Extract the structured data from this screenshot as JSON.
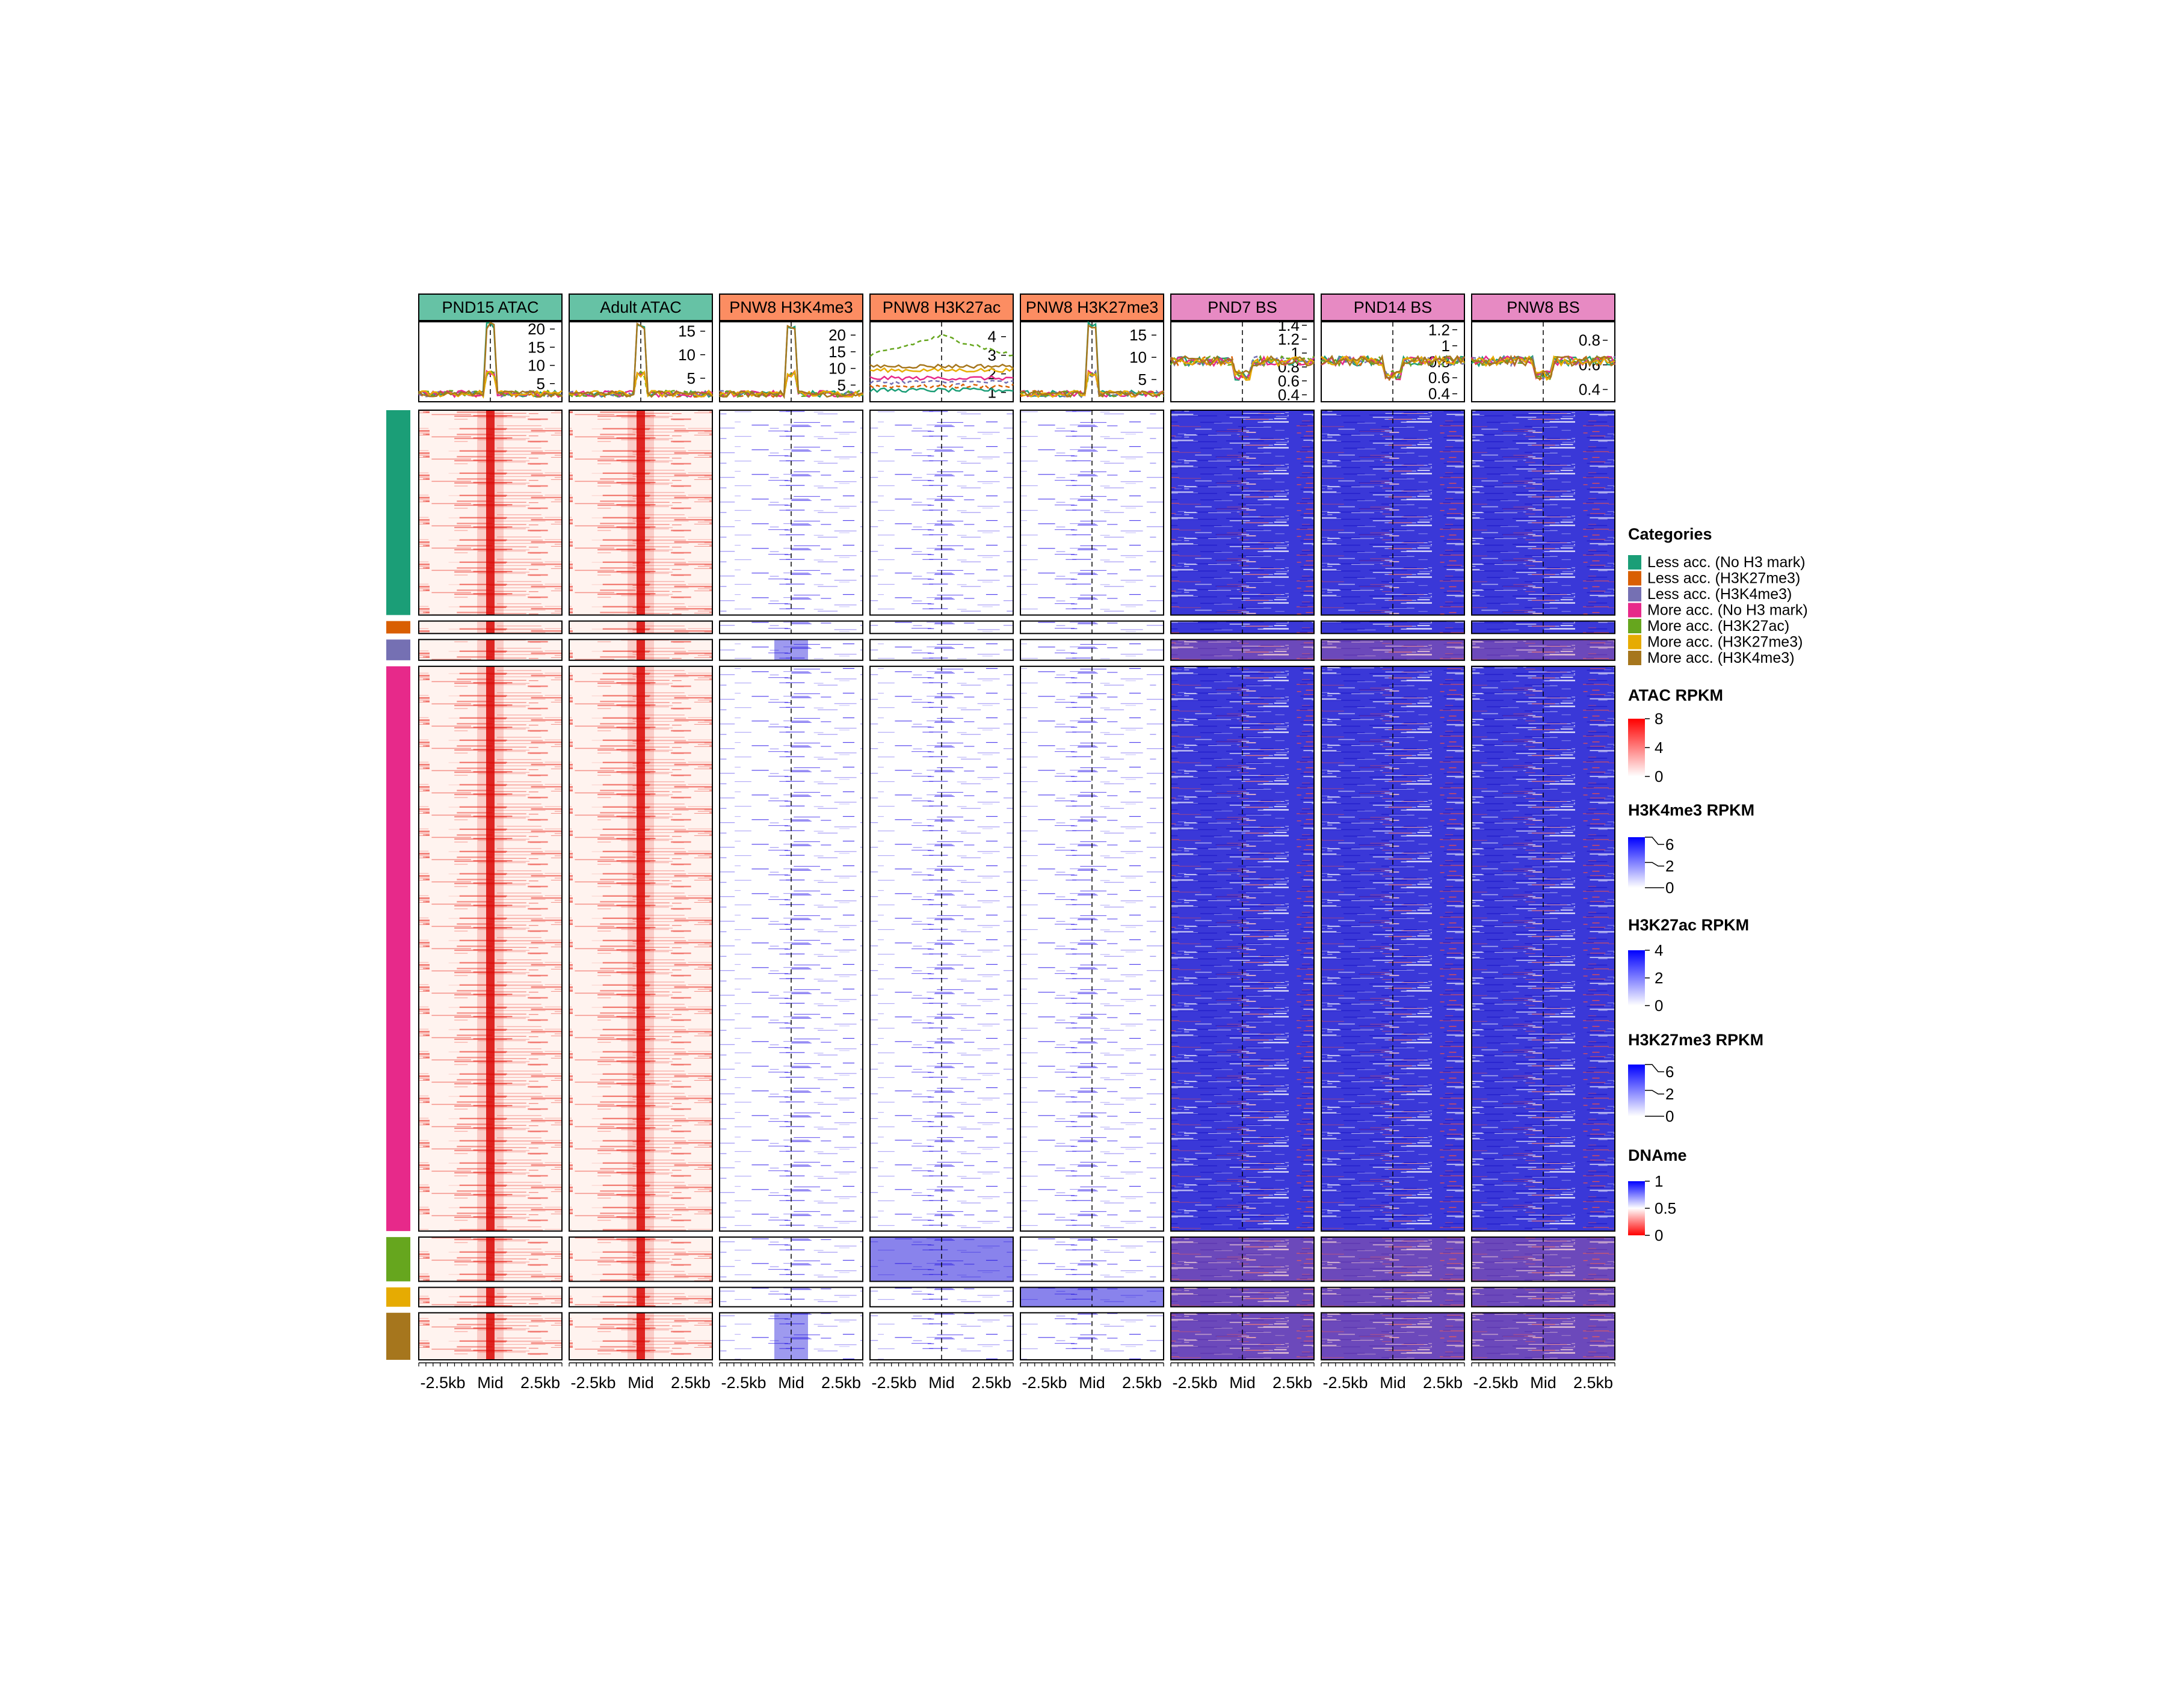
{
  "chart_data": {
    "type": "heatmap",
    "x_ticks": [
      "-2.5kb",
      "Mid",
      "2.5kb"
    ],
    "panels": [
      {
        "title": "PND15 ATAC",
        "header_color": "#66c2a5",
        "scale": "atac",
        "profile_ticks": [
          "20",
          "15",
          "10",
          "5"
        ],
        "ylim": [
          0,
          22
        ]
      },
      {
        "title": "Adult ATAC",
        "header_color": "#66c2a5",
        "scale": "atac",
        "profile_ticks": [
          "15",
          "10",
          "5"
        ],
        "ylim": [
          0,
          17
        ]
      },
      {
        "title": "PNW8 H3K4me3",
        "header_color": "#fc8d62",
        "scale": "h3k4me3",
        "profile_ticks": [
          "20",
          "15",
          "10",
          "5"
        ],
        "ylim": [
          0,
          24
        ]
      },
      {
        "title": "PNW8 H3K27ac",
        "header_color": "#fc8d62",
        "scale": "h3k27ac",
        "profile_ticks": [
          "4",
          "3",
          "2",
          "1"
        ],
        "ylim": [
          0.5,
          4.8
        ]
      },
      {
        "title": "PNW8 H3K27me3",
        "header_color": "#fc8d62",
        "scale": "h3k27me3",
        "profile_ticks": [
          "15",
          "10",
          "5"
        ],
        "ylim": [
          0,
          18
        ]
      },
      {
        "title": "PND7 BS",
        "header_color": "#e78ac3",
        "scale": "dname",
        "profile_ticks": [
          "1.4",
          "1.2",
          "1",
          "0.8",
          "0.6",
          "0.4"
        ],
        "ylim": [
          0.3,
          1.45
        ]
      },
      {
        "title": "PND14 BS",
        "header_color": "#e78ac3",
        "scale": "dname",
        "profile_ticks": [
          "1.2",
          "1",
          "0.8",
          "0.6",
          "0.4"
        ],
        "ylim": [
          0.3,
          1.3
        ]
      },
      {
        "title": "PNW8 BS",
        "header_color": "#e78ac3",
        "scale": "dname",
        "profile_ticks": [
          "0.8",
          "0.6",
          "0.4"
        ],
        "ylim": [
          0.3,
          0.95
        ]
      }
    ],
    "categories": [
      {
        "name": "Less acc. (No H3 mark)",
        "color": "#1b9e77",
        "relative_size": 148
      },
      {
        "name": "Less acc. (H3K27me3)",
        "color": "#d95f02",
        "relative_size": 9
      },
      {
        "name": "Less acc. (H3K4me3)",
        "color": "#7570b3",
        "relative_size": 15
      },
      {
        "name": "More acc. (No H3 mark)",
        "color": "#e7298a",
        "relative_size": 408
      },
      {
        "name": "More acc. (H3K27ac)",
        "color": "#66a61e",
        "relative_size": 32
      },
      {
        "name": "More acc. (H3K27me3)",
        "color": "#e6ab02",
        "relative_size": 14
      },
      {
        "name": "More acc. (H3K4me3)",
        "color": "#a6761d",
        "relative_size": 34
      }
    ],
    "legend_titles": {
      "categories": "Categories",
      "atac": "ATAC RPKM",
      "h3k4me3": "H3K4me3 RPKM",
      "h3k27ac": "H3K27ac RPKM",
      "h3k27me3": "H3K27me3 RPKM",
      "dname": "DNAme"
    },
    "color_scales": {
      "atac": {
        "ticks": [
          "8",
          "4",
          "0"
        ],
        "colors": [
          "#ff0000",
          "#ffffff"
        ]
      },
      "h3k4me3": {
        "ticks": [
          "6",
          "2",
          "0"
        ],
        "colors": [
          "#0000ff",
          "#ffffff"
        ]
      },
      "h3k27ac": {
        "ticks": [
          "4",
          "2",
          "0"
        ],
        "colors": [
          "#0000ff",
          "#ffffff"
        ]
      },
      "h3k27me3": {
        "ticks": [
          "6",
          "2",
          "0"
        ],
        "colors": [
          "#0000ff",
          "#ffffff"
        ]
      },
      "dname": {
        "ticks": [
          "1",
          "0.5",
          "0"
        ],
        "colors": [
          "#0000ff",
          "#ffffff",
          "#ff0000"
        ]
      }
    }
  }
}
